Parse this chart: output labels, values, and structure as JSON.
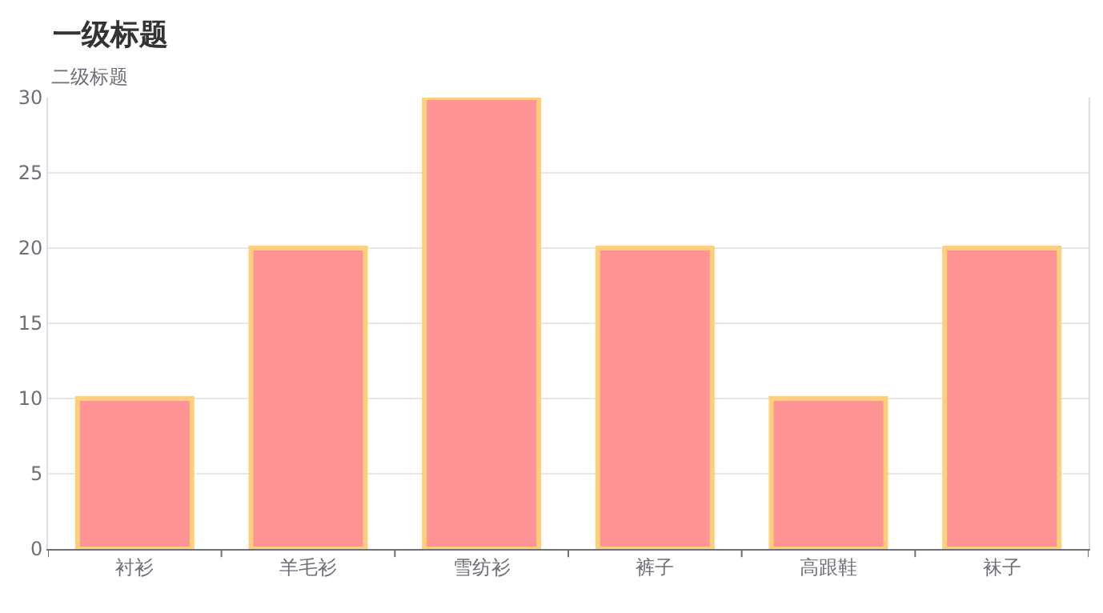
{
  "chart_data": {
    "type": "bar",
    "title": "一级标题",
    "subtitle": "二级标题",
    "categories": [
      "衬衫",
      "羊毛衫",
      "雪纺衫",
      "裤子",
      "高跟鞋",
      "袜子"
    ],
    "series": [
      {
        "color": "#ff9497",
        "values": [
          10,
          20,
          30,
          20,
          10,
          20
        ]
      }
    ],
    "ylim": [
      0,
      30
    ],
    "yticks": [
      0,
      5,
      10,
      15,
      20,
      25,
      30
    ],
    "grid": "y",
    "legend": false
  }
}
